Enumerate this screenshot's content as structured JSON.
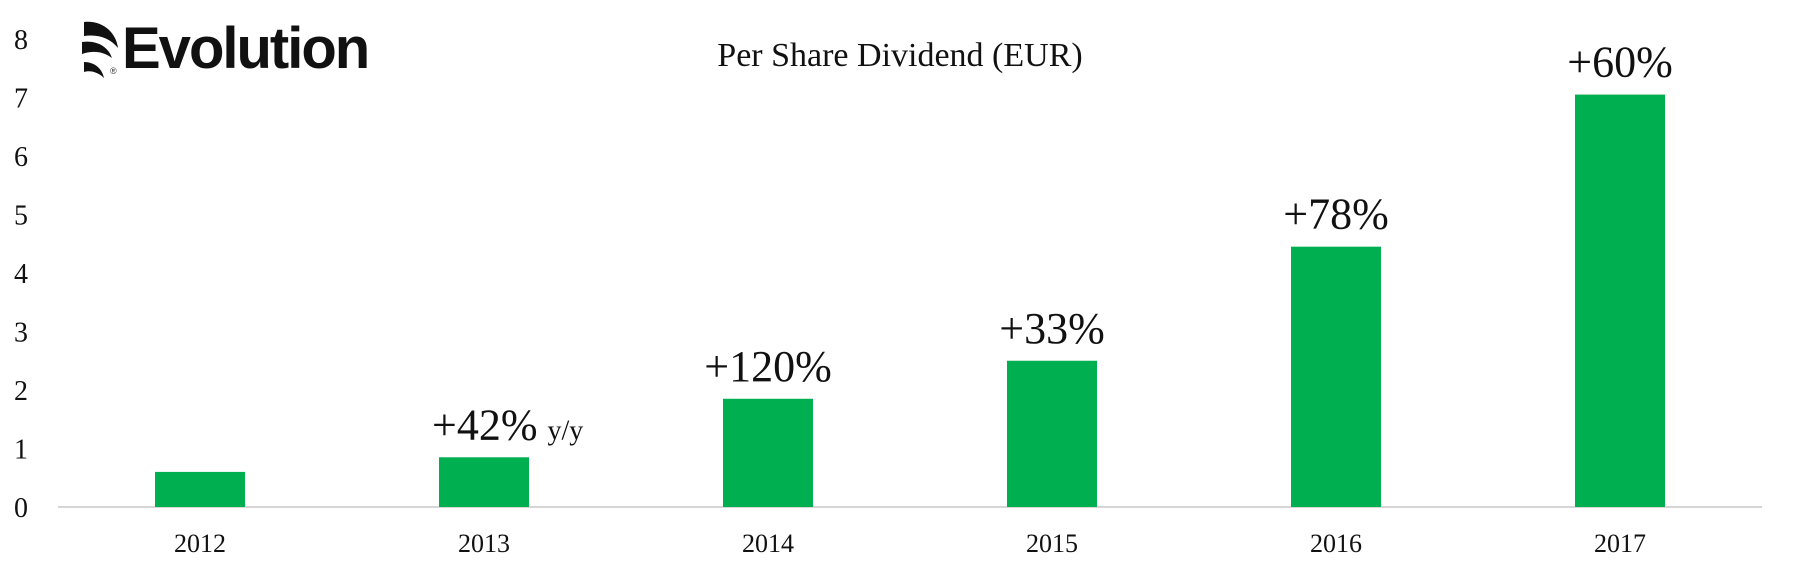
{
  "logo": {
    "text": "Evolution",
    "reg": "®"
  },
  "chart_data": {
    "type": "bar",
    "title": "Per Share Dividend (EUR)",
    "categories": [
      "2012",
      "2013",
      "2014",
      "2015",
      "2016",
      "2017"
    ],
    "values": [
      0.6,
      0.85,
      1.85,
      2.5,
      4.45,
      7.05
    ],
    "ylim": [
      0,
      8
    ],
    "yticks": [
      0,
      1,
      2,
      3,
      4,
      5,
      6,
      7,
      8
    ],
    "growth_labels": [
      "",
      "+42%",
      "+120%",
      "+33%",
      "+78%",
      "+60%"
    ],
    "growth_suffix": "y/y",
    "bar_color": "#00b050",
    "xlabel": "",
    "ylabel": ""
  }
}
